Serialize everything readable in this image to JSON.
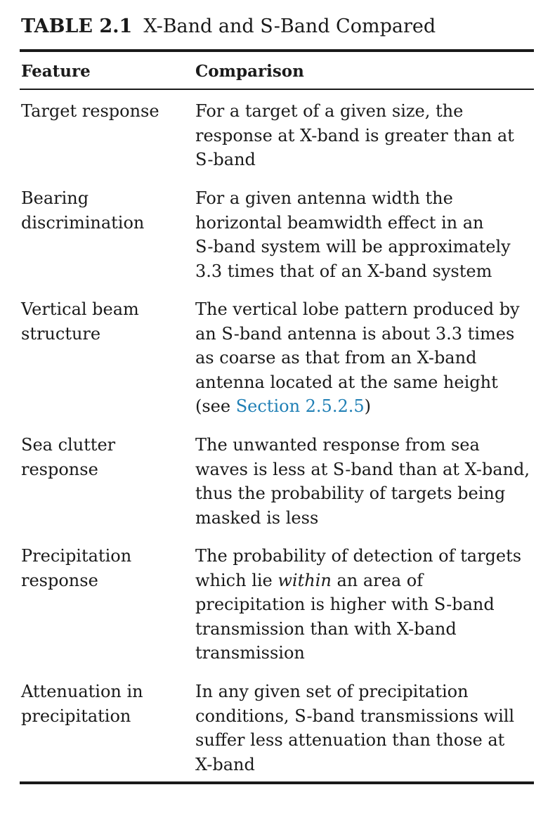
{
  "table": {
    "caption_label": "TABLE 2.1",
    "caption_title": "X-Band and S-Band Compared",
    "header_feature": "Feature",
    "header_comparison": "Comparison",
    "rows": [
      {
        "feature_lines": [
          "Target response"
        ],
        "comparison_lines": [
          "For a target of a given size, the",
          "response at X-band is greater than at",
          "S-band"
        ]
      },
      {
        "feature_lines": [
          "Bearing",
          "discrimination"
        ],
        "comparison_lines": [
          "For a given antenna width the",
          "horizontal beamwidth effect in an",
          "S-band system will be approximately",
          "3.3 times that of an X-band system"
        ]
      },
      {
        "feature_lines": [
          "Vertical beam",
          "structure"
        ],
        "comparison_lines": [
          "The vertical lobe pattern produced by",
          "an S-band antenna is about 3.3 times",
          "as coarse as that from an X-band",
          "antenna located at the same height"
        ],
        "comparison_last_prefix": "(see ",
        "comparison_last_link": "Section 2.5.2.5",
        "comparison_last_suffix": ")"
      },
      {
        "feature_lines": [
          "Sea clutter",
          "response"
        ],
        "comparison_lines": [
          "The unwanted response from sea",
          "waves is less at S-band than at X-band,",
          "thus the probability of targets being",
          "masked is less"
        ]
      },
      {
        "feature_lines": [
          "Precipitation",
          "response"
        ],
        "comparison_lines": [
          "The probability of detection of targets",
          "precipitation is higher with S-band",
          "transmission than with X-band",
          "transmission"
        ],
        "comparison_line2_prefix": "which lie ",
        "comparison_line2_emph": "within",
        "comparison_line2_suffix": " an area of"
      },
      {
        "feature_lines": [
          "Attenuation in",
          "precipitation"
        ],
        "comparison_lines": [
          "In any given set of precipitation",
          "conditions, S-band transmissions will",
          "suffer less attenuation than those at",
          "X-band"
        ]
      }
    ]
  },
  "colors": {
    "text": "#1a1a1a",
    "link": "#1f7fb5"
  }
}
